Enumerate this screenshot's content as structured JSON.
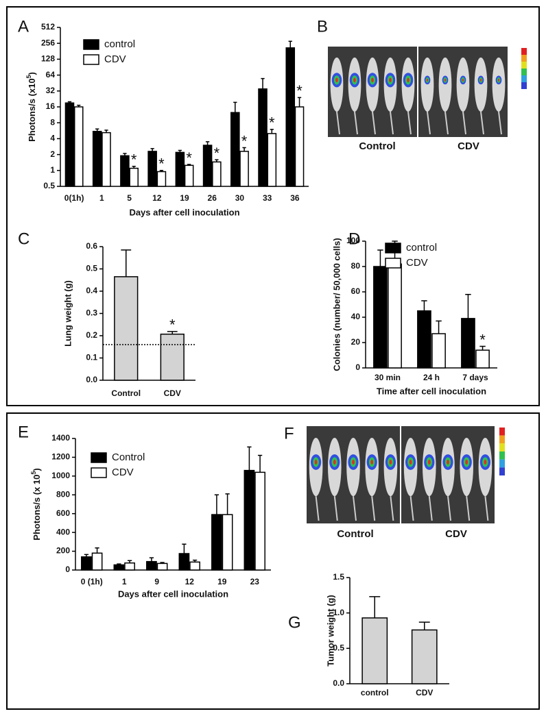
{
  "chart_data": [
    {
      "panel": "A",
      "type": "bar",
      "y_scale": "log",
      "categories": [
        "0(1h)",
        "1",
        "5",
        "12",
        "19",
        "26",
        "30",
        "33",
        "36"
      ],
      "series": [
        {
          "name": "control",
          "color": "#000000",
          "values": [
            19,
            5.5,
            1.9,
            2.3,
            2.2,
            3,
            12.5,
            35,
            210
          ],
          "errors": [
            1,
            0.6,
            0.2,
            0.3,
            0.2,
            0.5,
            7,
            20,
            70
          ]
        },
        {
          "name": "CDV",
          "color": "#ffffff",
          "values": [
            16,
            5.2,
            1.1,
            0.95,
            1.25,
            1.45,
            2.3,
            5,
            16
          ],
          "errors": [
            1.2,
            0.6,
            0.1,
            0.05,
            0.05,
            0.15,
            0.4,
            1,
            8
          ],
          "significant": [
            false,
            false,
            true,
            true,
            true,
            true,
            true,
            true,
            true
          ]
        }
      ],
      "marker": "*",
      "ylim": [
        0.5,
        512
      ],
      "yticks": [
        0.5,
        1,
        2,
        4,
        8,
        16,
        32,
        64,
        128,
        256,
        512
      ],
      "y_label": [
        "Photons/s (x10",
        "5",
        ")"
      ],
      "x_label": "Days after cell inoculation"
    },
    {
      "panel": "C",
      "type": "bar",
      "categories": [
        "Control",
        "CDV"
      ],
      "series": [
        {
          "color": "#d3d3d3",
          "values": [
            0.465,
            0.207
          ],
          "errors": [
            0.12,
            0.012
          ],
          "significant": [
            false,
            true
          ]
        }
      ],
      "marker": "*",
      "reference_line": 0.16,
      "ylim": [
        0,
        0.6
      ],
      "yticks": [
        {
          "value": 0,
          "label": "0.0"
        },
        0.1,
        0.2,
        0.3,
        0.4,
        0.5,
        0.6
      ],
      "y_label": "Lung weight (g)"
    },
    {
      "panel": "D",
      "type": "bar",
      "categories": [
        "30 min",
        "24 h",
        "7 days"
      ],
      "series": [
        {
          "name": "control",
          "color": "#000000",
          "values": [
            80,
            45,
            39
          ],
          "errors": [
            13,
            8,
            19
          ]
        },
        {
          "name": "CDV",
          "color": "#ffffff",
          "values": [
            82,
            27,
            14
          ],
          "errors": [
            18,
            10,
            3
          ],
          "significant": [
            false,
            false,
            true
          ]
        }
      ],
      "marker": "*",
      "ylim": [
        0,
        100
      ],
      "yticks": [
        0,
        20,
        40,
        60,
        80,
        100
      ],
      "y_label": "Colonies (number/ 50,000 cells)",
      "x_label": "Time after cell inoculation"
    },
    {
      "panel": "E",
      "type": "bar",
      "categories": [
        "0 (1h)",
        "1",
        "9",
        "12",
        "19",
        "23"
      ],
      "series": [
        {
          "name": "Control",
          "color": "#000000",
          "values": [
            140,
            55,
            90,
            175,
            590,
            1060
          ],
          "errors": [
            25,
            10,
            40,
            100,
            210,
            250
          ]
        },
        {
          "name": "CDV",
          "color": "#ffffff",
          "values": [
            180,
            75,
            70,
            85,
            590,
            1040
          ],
          "errors": [
            55,
            25,
            10,
            20,
            220,
            180
          ]
        }
      ],
      "ylim": [
        0,
        1400
      ],
      "yticks": [
        0,
        200,
        400,
        600,
        800,
        1000,
        1200,
        1400
      ],
      "y_label": [
        "Photons/s (x 10",
        "5",
        ")"
      ],
      "x_label": "Days after cell inoculation"
    },
    {
      "panel": "G",
      "type": "bar",
      "categories": [
        "control",
        "CDV"
      ],
      "series": [
        {
          "color": "#d3d3d3",
          "values": [
            0.93,
            0.76
          ],
          "errors": [
            0.3,
            0.11
          ]
        }
      ],
      "ylim": [
        0,
        1.5
      ],
      "yticks": [
        {
          "value": 0,
          "label": "0.0"
        },
        0.5,
        {
          "value": 1,
          "label": "1.0"
        },
        1.5
      ],
      "y_label": "Tumor weight (g)"
    }
  ],
  "images": [
    {
      "panel": "B",
      "captions": [
        "Control",
        "CDV"
      ]
    },
    {
      "panel": "F",
      "captions": [
        "Control",
        "CDV"
      ]
    }
  ]
}
